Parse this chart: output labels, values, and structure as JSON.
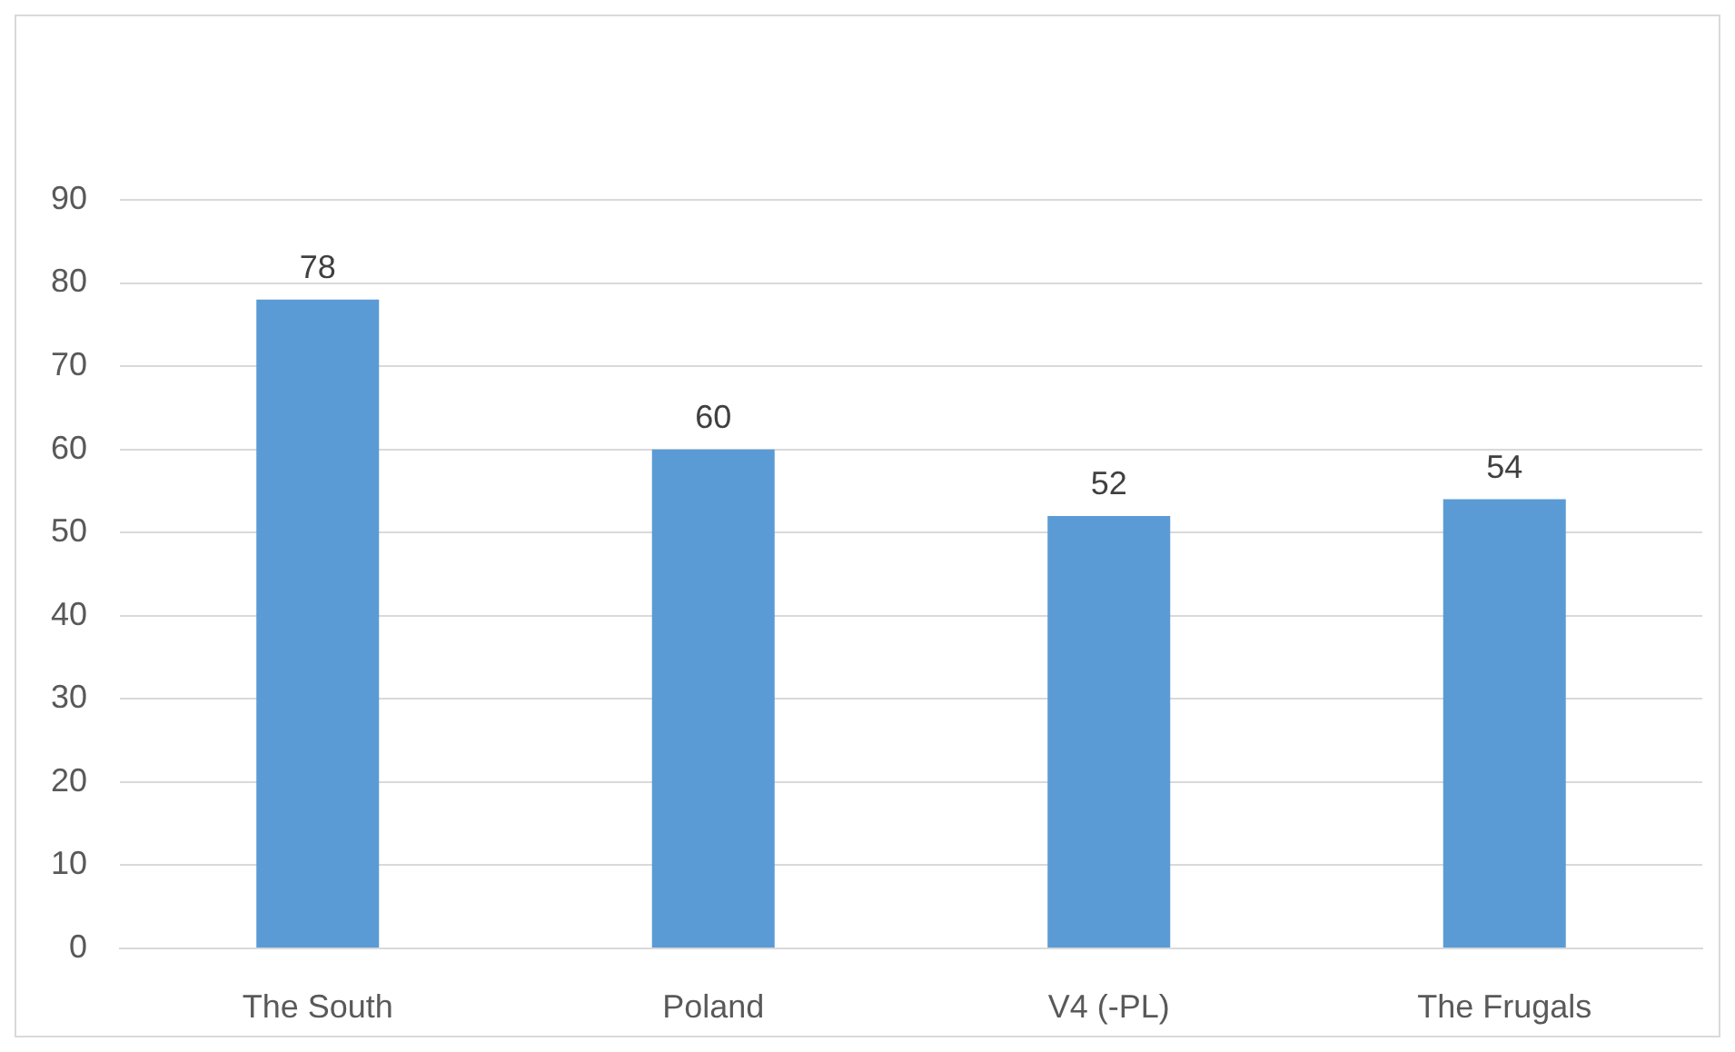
{
  "chart_data": {
    "type": "bar",
    "categories": [
      "The South",
      "Poland",
      "V4 (-PL)",
      "The Frugals"
    ],
    "values": [
      78,
      60,
      52,
      54
    ],
    "color": "#5b9bd5",
    "ylim": [
      0,
      90
    ],
    "yticks": [
      0,
      10,
      20,
      30,
      40,
      50,
      60,
      70,
      80,
      90
    ],
    "grid": "y",
    "legend": false,
    "data_labels": true
  }
}
